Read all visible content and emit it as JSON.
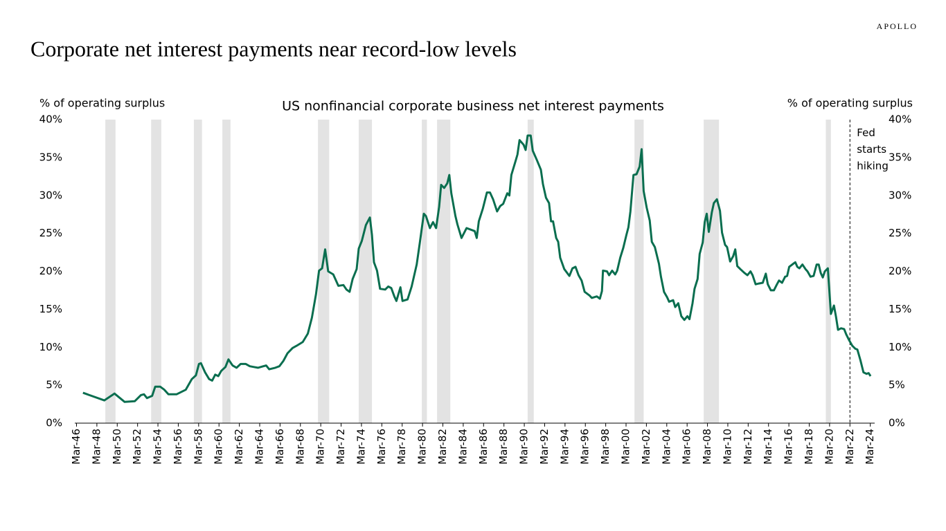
{
  "brand": "APOLLO",
  "chart_data": {
    "type": "line",
    "title": "Corporate net interest payments near record-low levels",
    "subtitle": "US nonfinancial corporate business net interest payments",
    "y_label": "% of operating surplus",
    "y2_label": "% of operating surplus",
    "color": "#0a6e4f",
    "shade_color": "#e3e3e3",
    "shaded_periods": [
      [
        1949.0,
        1950.0
      ],
      [
        1953.5,
        1954.5
      ],
      [
        1957.7,
        1958.5
      ],
      [
        1960.5,
        1961.3
      ],
      [
        1969.9,
        1971.0
      ],
      [
        1973.9,
        1975.2
      ],
      [
        1980.1,
        1980.6
      ],
      [
        1981.6,
        1982.9
      ],
      [
        1990.5,
        1991.1
      ],
      [
        2001.0,
        2001.9
      ],
      [
        2007.8,
        2009.3
      ],
      [
        2019.8,
        2020.3
      ]
    ],
    "annotation": {
      "x": 2022.17,
      "text": "Fed starts hiking"
    },
    "x": [
      1946.8,
      1948.9,
      1949.9,
      1950.9,
      1951.9,
      1952.5,
      1952.8,
      1953.1,
      1953.6,
      1953.9,
      1954.4,
      1954.8,
      1955.2,
      1956.0,
      1956.9,
      1957.5,
      1957.9,
      1958.2,
      1958.4,
      1958.8,
      1959.2,
      1959.5,
      1959.8,
      1960.1,
      1960.4,
      1960.8,
      1961.1,
      1961.5,
      1961.9,
      1962.3,
      1962.8,
      1963.2,
      1963.6,
      1964.0,
      1964.8,
      1965.1,
      1965.7,
      1966.1,
      1966.5,
      1966.9,
      1967.4,
      1967.8,
      1968.4,
      1968.9,
      1969.3,
      1969.7,
      1970.0,
      1970.3,
      1970.6,
      1970.9,
      1971.4,
      1971.9,
      1972.4,
      1972.7,
      1973.0,
      1973.3,
      1973.7,
      1973.9,
      1974.2,
      1974.6,
      1975.0,
      1975.2,
      1975.4,
      1975.7,
      1976.0,
      1976.5,
      1976.8,
      1977.1,
      1977.4,
      1977.6,
      1978.0,
      1978.2,
      1978.7,
      1979.1,
      1979.6,
      1979.9,
      1980.3,
      1980.5,
      1980.9,
      1981.2,
      1981.5,
      1981.8,
      1982.0,
      1982.3,
      1982.6,
      1982.8,
      1983.0,
      1983.4,
      1983.6,
      1984.0,
      1984.5,
      1985.1,
      1985.3,
      1985.5,
      1985.7,
      1986.1,
      1986.5,
      1986.8,
      1987.1,
      1987.5,
      1987.8,
      1988.1,
      1988.5,
      1988.7,
      1988.9,
      1989.3,
      1989.5,
      1989.7,
      1990.1,
      1990.3,
      1990.5,
      1990.8,
      1991.0,
      1991.4,
      1991.8,
      1992.0,
      1992.3,
      1992.6,
      1992.8,
      1993.0,
      1993.3,
      1993.5,
      1993.7,
      1994.1,
      1994.6,
      1994.9,
      1995.2,
      1995.5,
      1995.8,
      1996.1,
      1996.6,
      1996.8,
      1997.3,
      1997.6,
      1997.8,
      1997.9,
      1998.3,
      1998.5,
      1998.8,
      1999.1,
      1999.3,
      1999.6,
      1999.9,
      2000.2,
      2000.4,
      2000.6,
      2000.9,
      2001.2,
      2001.5,
      2001.7,
      2001.9,
      2002.2,
      2002.5,
      2002.7,
      2003.0,
      2003.4,
      2003.6,
      2003.9,
      2004.2,
      2004.4,
      2004.8,
      2005.0,
      2005.3,
      2005.6,
      2005.9,
      2006.2,
      2006.4,
      2006.7,
      2006.9,
      2007.2,
      2007.4,
      2007.7,
      2007.9,
      2008.1,
      2008.3,
      2008.6,
      2008.8,
      2009.1,
      2009.4,
      2009.6,
      2009.9,
      2010.1,
      2010.4,
      2010.7,
      2010.9,
      2011.1,
      2011.4,
      2011.8,
      2012.1,
      2012.4,
      2012.6,
      2012.9,
      2013.2,
      2013.6,
      2013.9,
      2014.1,
      2014.4,
      2014.7,
      2015.0,
      2015.2,
      2015.5,
      2015.8,
      2016.0,
      2016.2,
      2016.6,
      2016.8,
      2017.0,
      2017.2,
      2017.5,
      2017.8,
      2018.0,
      2018.3,
      2018.6,
      2018.9,
      2019.1,
      2019.3,
      2019.5,
      2019.7,
      2020.0,
      2020.3,
      2020.6,
      2020.8,
      2021.0,
      2021.3,
      2021.6,
      2021.8,
      2022.1,
      2022.4,
      2022.7,
      2022.9,
      2023.2,
      2023.5,
      2023.8,
      2024.0,
      2024.2
    ],
    "values": [
      4.0,
      3.0,
      3.9,
      2.8,
      2.9,
      3.7,
      3.8,
      3.3,
      3.6,
      4.8,
      4.8,
      4.4,
      3.8,
      3.8,
      4.4,
      5.8,
      6.3,
      7.8,
      7.9,
      6.7,
      5.8,
      5.6,
      6.4,
      6.2,
      6.9,
      7.4,
      8.4,
      7.6,
      7.3,
      7.8,
      7.8,
      7.5,
      7.4,
      7.3,
      7.6,
      7.1,
      7.3,
      7.5,
      8.2,
      9.2,
      9.9,
      10.2,
      10.7,
      11.8,
      13.9,
      17.0,
      20.1,
      20.4,
      22.9,
      20.0,
      19.6,
      18.1,
      18.2,
      17.6,
      17.3,
      19.0,
      20.3,
      23.0,
      24.0,
      26.1,
      27.1,
      24.8,
      21.2,
      20.1,
      17.7,
      17.6,
      18.0,
      17.8,
      16.7,
      16.1,
      17.9,
      16.1,
      16.3,
      18.0,
      20.9,
      23.7,
      27.6,
      27.3,
      25.7,
      26.5,
      25.7,
      28.5,
      31.4,
      31.0,
      31.6,
      32.7,
      30.3,
      27.3,
      26.2,
      24.4,
      25.7,
      25.4,
      25.3,
      24.4,
      26.6,
      28.3,
      30.4,
      30.4,
      29.5,
      27.9,
      28.6,
      28.9,
      30.3,
      30.0,
      32.7,
      34.5,
      35.4,
      37.3,
      36.7,
      36.0,
      37.9,
      37.9,
      35.9,
      34.7,
      33.4,
      31.5,
      29.7,
      29.0,
      26.6,
      26.6,
      24.4,
      23.9,
      21.8,
      20.3,
      19.4,
      20.4,
      20.6,
      19.5,
      18.8,
      17.3,
      16.8,
      16.5,
      16.7,
      16.4,
      17.4,
      20.1,
      20.0,
      19.5,
      20.1,
      19.6,
      20.1,
      21.8,
      23.1,
      24.8,
      25.8,
      27.9,
      32.7,
      32.8,
      33.8,
      36.1,
      30.6,
      28.4,
      26.7,
      23.9,
      23.2,
      21.0,
      19.3,
      17.3,
      16.6,
      16.0,
      16.2,
      15.3,
      15.8,
      14.1,
      13.6,
      14.1,
      13.7,
      15.8,
      17.7,
      19.0,
      22.3,
      23.8,
      26.5,
      27.6,
      25.2,
      27.8,
      29.0,
      29.5,
      28.0,
      25.1,
      23.5,
      23.2,
      21.3,
      22.0,
      22.9,
      20.7,
      20.3,
      19.8,
      19.5,
      20.0,
      19.5,
      18.3,
      18.4,
      18.5,
      19.7,
      18.3,
      17.5,
      17.5,
      18.3,
      18.8,
      18.5,
      19.3,
      19.4,
      20.6,
      21.0,
      21.2,
      20.6,
      20.4,
      20.9,
      20.3,
      20.0,
      19.3,
      19.4,
      20.9,
      20.9,
      19.8,
      19.2,
      20.0,
      20.4,
      14.4,
      15.5,
      14.0,
      12.3,
      12.5,
      12.4,
      11.7,
      10.9,
      10.2,
      9.8,
      9.7,
      8.3,
      6.7,
      6.5,
      6.6,
      6.2
    ],
    "xlim": [
      1946.0,
      2024.6
    ],
    "xticks": [
      {
        "value": 1946.17,
        "label": "Mar-46"
      },
      {
        "value": 1948.17,
        "label": "Mar-48"
      },
      {
        "value": 1950.17,
        "label": "Mar-50"
      },
      {
        "value": 1952.17,
        "label": "Mar-52"
      },
      {
        "value": 1954.17,
        "label": "Mar-54"
      },
      {
        "value": 1956.17,
        "label": "Mar-56"
      },
      {
        "value": 1958.17,
        "label": "Mar-58"
      },
      {
        "value": 1960.17,
        "label": "Mar-60"
      },
      {
        "value": 1962.17,
        "label": "Mar-62"
      },
      {
        "value": 1964.17,
        "label": "Mar-64"
      },
      {
        "value": 1966.17,
        "label": "Mar-66"
      },
      {
        "value": 1968.17,
        "label": "Mar-68"
      },
      {
        "value": 1970.17,
        "label": "Mar-70"
      },
      {
        "value": 1972.17,
        "label": "Mar-72"
      },
      {
        "value": 1974.17,
        "label": "Mar-74"
      },
      {
        "value": 1976.17,
        "label": "Mar-76"
      },
      {
        "value": 1978.17,
        "label": "Mar-78"
      },
      {
        "value": 1980.17,
        "label": "Mar-80"
      },
      {
        "value": 1982.17,
        "label": "Mar-82"
      },
      {
        "value": 1984.17,
        "label": "Mar-84"
      },
      {
        "value": 1986.17,
        "label": "Mar-86"
      },
      {
        "value": 1988.17,
        "label": "Mar-88"
      },
      {
        "value": 1990.17,
        "label": "Mar-90"
      },
      {
        "value": 1992.17,
        "label": "Mar-92"
      },
      {
        "value": 1994.17,
        "label": "Mar-94"
      },
      {
        "value": 1996.17,
        "label": "Mar-96"
      },
      {
        "value": 1998.17,
        "label": "Mar-98"
      },
      {
        "value": 2000.17,
        "label": "Mar-00"
      },
      {
        "value": 2002.17,
        "label": "Mar-02"
      },
      {
        "value": 2004.17,
        "label": "Mar-04"
      },
      {
        "value": 2006.17,
        "label": "Mar-06"
      },
      {
        "value": 2008.17,
        "label": "Mar-08"
      },
      {
        "value": 2010.17,
        "label": "Mar-10"
      },
      {
        "value": 2012.17,
        "label": "Mar-12"
      },
      {
        "value": 2014.17,
        "label": "Mar-14"
      },
      {
        "value": 2016.17,
        "label": "Mar-16"
      },
      {
        "value": 2018.17,
        "label": "Mar-18"
      },
      {
        "value": 2020.17,
        "label": "Mar-20"
      },
      {
        "value": 2022.17,
        "label": "Mar-22"
      },
      {
        "value": 2024.17,
        "label": "Mar-24"
      }
    ],
    "ylim": [
      0,
      40
    ],
    "yticks": [
      {
        "value": 0,
        "label": "0%"
      },
      {
        "value": 5,
        "label": "5%"
      },
      {
        "value": 10,
        "label": "10%"
      },
      {
        "value": 15,
        "label": "15%"
      },
      {
        "value": 20,
        "label": "20%"
      },
      {
        "value": 25,
        "label": "25%"
      },
      {
        "value": 30,
        "label": "30%"
      },
      {
        "value": 35,
        "label": "35%"
      },
      {
        "value": 40,
        "label": "40%"
      }
    ],
    "y2lim": [
      0,
      40
    ],
    "y2ticks": [
      {
        "value": 0,
        "label": "0%"
      },
      {
        "value": 5,
        "label": "5%"
      },
      {
        "value": 10,
        "label": "10%"
      },
      {
        "value": 15,
        "label": "15%"
      },
      {
        "value": 20,
        "label": "20%"
      },
      {
        "value": 25,
        "label": "25%"
      },
      {
        "value": 30,
        "label": "30%"
      },
      {
        "value": 35,
        "label": "35%"
      },
      {
        "value": 40,
        "label": "40%"
      }
    ]
  }
}
